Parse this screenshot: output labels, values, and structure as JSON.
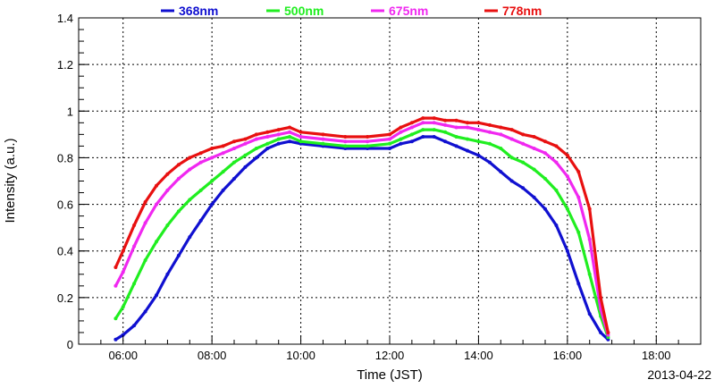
{
  "chart_data": {
    "type": "scatter",
    "xlabel": "Time (JST)",
    "ylabel": "Intensity (a.u.)",
    "date_label": "2013-04-22",
    "xlim": [
      "05:00",
      "19:00"
    ],
    "ylim": [
      0,
      1.4
    ],
    "x_ticks": [
      "06:00",
      "08:00",
      "10:00",
      "12:00",
      "14:00",
      "16:00",
      "18:00"
    ],
    "y_ticks": [
      "0",
      "0.2",
      "0.4",
      "0.6",
      "0.8",
      "1",
      "1.2",
      "1.4"
    ],
    "grid": true,
    "legend_position": "top",
    "series": [
      {
        "name": "368nm",
        "color": "#1010d0",
        "points": [
          [
            "05:50",
            0.02
          ],
          [
            "06:00",
            0.04
          ],
          [
            "06:15",
            0.08
          ],
          [
            "06:30",
            0.14
          ],
          [
            "06:45",
            0.21
          ],
          [
            "07:00",
            0.3
          ],
          [
            "07:15",
            0.38
          ],
          [
            "07:30",
            0.46
          ],
          [
            "07:45",
            0.53
          ],
          [
            "08:00",
            0.6
          ],
          [
            "08:15",
            0.66
          ],
          [
            "08:30",
            0.71
          ],
          [
            "08:45",
            0.76
          ],
          [
            "09:00",
            0.8
          ],
          [
            "09:15",
            0.84
          ],
          [
            "09:30",
            0.86
          ],
          [
            "09:45",
            0.87
          ],
          [
            "10:00",
            0.86
          ],
          [
            "10:30",
            0.85
          ],
          [
            "11:00",
            0.84
          ],
          [
            "11:30",
            0.84
          ],
          [
            "12:00",
            0.84
          ],
          [
            "12:15",
            0.86
          ],
          [
            "12:30",
            0.87
          ],
          [
            "12:45",
            0.89
          ],
          [
            "13:00",
            0.89
          ],
          [
            "13:15",
            0.87
          ],
          [
            "13:30",
            0.85
          ],
          [
            "13:45",
            0.83
          ],
          [
            "14:00",
            0.81
          ],
          [
            "14:15",
            0.78
          ],
          [
            "14:30",
            0.74
          ],
          [
            "14:45",
            0.7
          ],
          [
            "15:00",
            0.67
          ],
          [
            "15:15",
            0.63
          ],
          [
            "15:30",
            0.58
          ],
          [
            "15:45",
            0.51
          ],
          [
            "16:00",
            0.4
          ],
          [
            "16:15",
            0.26
          ],
          [
            "16:30",
            0.13
          ],
          [
            "16:45",
            0.05
          ],
          [
            "16:55",
            0.02
          ]
        ]
      },
      {
        "name": "500nm",
        "color": "#20ee20",
        "points": [
          [
            "05:50",
            0.11
          ],
          [
            "06:00",
            0.16
          ],
          [
            "06:15",
            0.26
          ],
          [
            "06:30",
            0.36
          ],
          [
            "06:45",
            0.44
          ],
          [
            "07:00",
            0.51
          ],
          [
            "07:15",
            0.57
          ],
          [
            "07:30",
            0.62
          ],
          [
            "07:45",
            0.66
          ],
          [
            "08:00",
            0.7
          ],
          [
            "08:15",
            0.74
          ],
          [
            "08:30",
            0.78
          ],
          [
            "08:45",
            0.81
          ],
          [
            "09:00",
            0.84
          ],
          [
            "09:15",
            0.86
          ],
          [
            "09:30",
            0.88
          ],
          [
            "09:45",
            0.89
          ],
          [
            "10:00",
            0.87
          ],
          [
            "10:30",
            0.86
          ],
          [
            "11:00",
            0.85
          ],
          [
            "11:30",
            0.85
          ],
          [
            "12:00",
            0.86
          ],
          [
            "12:15",
            0.88
          ],
          [
            "12:30",
            0.9
          ],
          [
            "12:45",
            0.92
          ],
          [
            "13:00",
            0.92
          ],
          [
            "13:15",
            0.91
          ],
          [
            "13:30",
            0.89
          ],
          [
            "13:45",
            0.88
          ],
          [
            "14:00",
            0.87
          ],
          [
            "14:15",
            0.86
          ],
          [
            "14:30",
            0.84
          ],
          [
            "14:45",
            0.8
          ],
          [
            "15:00",
            0.78
          ],
          [
            "15:15",
            0.75
          ],
          [
            "15:30",
            0.71
          ],
          [
            "15:45",
            0.66
          ],
          [
            "16:00",
            0.58
          ],
          [
            "16:15",
            0.48
          ],
          [
            "16:30",
            0.3
          ],
          [
            "16:45",
            0.12
          ],
          [
            "16:55",
            0.03
          ]
        ]
      },
      {
        "name": "675nm",
        "color": "#f028f0",
        "points": [
          [
            "05:50",
            0.25
          ],
          [
            "06:00",
            0.31
          ],
          [
            "06:15",
            0.42
          ],
          [
            "06:30",
            0.52
          ],
          [
            "06:45",
            0.6
          ],
          [
            "07:00",
            0.66
          ],
          [
            "07:15",
            0.71
          ],
          [
            "07:30",
            0.75
          ],
          [
            "07:45",
            0.78
          ],
          [
            "08:00",
            0.8
          ],
          [
            "08:15",
            0.82
          ],
          [
            "08:30",
            0.84
          ],
          [
            "08:45",
            0.86
          ],
          [
            "09:00",
            0.88
          ],
          [
            "09:15",
            0.89
          ],
          [
            "09:30",
            0.9
          ],
          [
            "09:45",
            0.91
          ],
          [
            "10:00",
            0.89
          ],
          [
            "10:30",
            0.88
          ],
          [
            "11:00",
            0.87
          ],
          [
            "11:30",
            0.87
          ],
          [
            "12:00",
            0.88
          ],
          [
            "12:15",
            0.91
          ],
          [
            "12:30",
            0.93
          ],
          [
            "12:45",
            0.95
          ],
          [
            "13:00",
            0.95
          ],
          [
            "13:15",
            0.94
          ],
          [
            "13:30",
            0.93
          ],
          [
            "13:45",
            0.93
          ],
          [
            "14:00",
            0.92
          ],
          [
            "14:15",
            0.91
          ],
          [
            "14:30",
            0.9
          ],
          [
            "14:45",
            0.88
          ],
          [
            "15:00",
            0.86
          ],
          [
            "15:15",
            0.84
          ],
          [
            "15:30",
            0.82
          ],
          [
            "15:45",
            0.78
          ],
          [
            "16:00",
            0.72
          ],
          [
            "16:15",
            0.63
          ],
          [
            "16:30",
            0.45
          ],
          [
            "16:45",
            0.15
          ],
          [
            "16:55",
            0.04
          ]
        ]
      },
      {
        "name": "778nm",
        "color": "#e81010",
        "points": [
          [
            "05:50",
            0.33
          ],
          [
            "06:00",
            0.4
          ],
          [
            "06:15",
            0.51
          ],
          [
            "06:30",
            0.61
          ],
          [
            "06:45",
            0.68
          ],
          [
            "07:00",
            0.73
          ],
          [
            "07:15",
            0.77
          ],
          [
            "07:30",
            0.8
          ],
          [
            "07:45",
            0.82
          ],
          [
            "08:00",
            0.84
          ],
          [
            "08:15",
            0.85
          ],
          [
            "08:30",
            0.87
          ],
          [
            "08:45",
            0.88
          ],
          [
            "09:00",
            0.9
          ],
          [
            "09:15",
            0.91
          ],
          [
            "09:30",
            0.92
          ],
          [
            "09:45",
            0.93
          ],
          [
            "10:00",
            0.91
          ],
          [
            "10:30",
            0.9
          ],
          [
            "11:00",
            0.89
          ],
          [
            "11:30",
            0.89
          ],
          [
            "12:00",
            0.9
          ],
          [
            "12:15",
            0.93
          ],
          [
            "12:30",
            0.95
          ],
          [
            "12:45",
            0.97
          ],
          [
            "13:00",
            0.97
          ],
          [
            "13:15",
            0.96
          ],
          [
            "13:30",
            0.96
          ],
          [
            "13:45",
            0.95
          ],
          [
            "14:00",
            0.95
          ],
          [
            "14:15",
            0.94
          ],
          [
            "14:30",
            0.93
          ],
          [
            "14:45",
            0.92
          ],
          [
            "15:00",
            0.9
          ],
          [
            "15:15",
            0.89
          ],
          [
            "15:30",
            0.87
          ],
          [
            "15:45",
            0.85
          ],
          [
            "16:00",
            0.81
          ],
          [
            "16:15",
            0.74
          ],
          [
            "16:30",
            0.58
          ],
          [
            "16:45",
            0.2
          ],
          [
            "16:55",
            0.05
          ]
        ]
      }
    ]
  }
}
